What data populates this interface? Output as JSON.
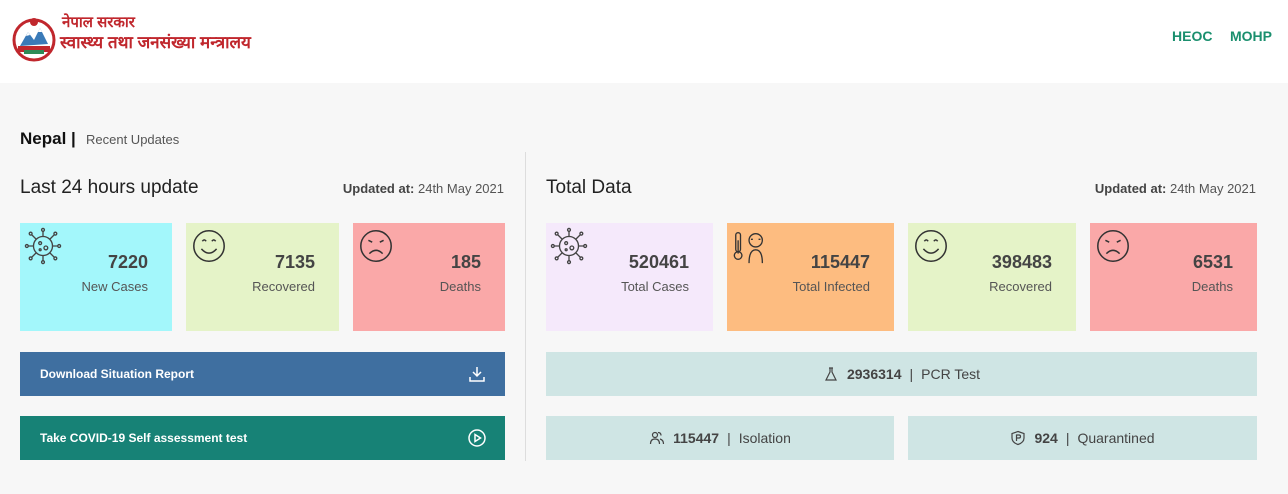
{
  "header": {
    "logo_line1": "नेपाल सरकार",
    "logo_line2": "स्वास्थ्य तथा जनसंख्या मन्त्रालय",
    "nav": [
      {
        "label": "HEOC"
      },
      {
        "label": "MOHP"
      }
    ]
  },
  "page": {
    "country": "Nepal |",
    "subtitle": "Recent Updates"
  },
  "last24": {
    "title": "Last 24 hours update",
    "updated_label": "Updated at:",
    "updated_value": "24th May 2021",
    "cards": [
      {
        "value": "7220",
        "label": "New Cases",
        "color": "#a3f7fb",
        "icon": "virus-icon"
      },
      {
        "value": "7135",
        "label": "Recovered",
        "color": "#e5f3c8",
        "icon": "smiley-icon"
      },
      {
        "value": "185",
        "label": "Deaths",
        "color": "#faa8a8",
        "icon": "sad-face-icon"
      }
    ],
    "download_label": "Download Situation Report",
    "assessment_label": "Take COVID-19 Self assessment test"
  },
  "total": {
    "title": "Total Data",
    "updated_label": "Updated at:",
    "updated_value": "24th May 2021",
    "cards": [
      {
        "value": "520461",
        "label": "Total Cases",
        "color": "#f5e9fb",
        "icon": "virus-icon"
      },
      {
        "value": "115447",
        "label": "Total Infected",
        "color": "#fdbc80",
        "icon": "fever-icon"
      },
      {
        "value": "398483",
        "label": "Recovered",
        "color": "#e5f3c8",
        "icon": "smiley-icon"
      },
      {
        "value": "6531",
        "label": "Deaths",
        "color": "#faa8a8",
        "icon": "sad-face-icon"
      }
    ],
    "pcr": {
      "value": "2936314",
      "sep": "|",
      "label": "PCR Test"
    },
    "isolation": {
      "value": "115447",
      "sep": "|",
      "label": "Isolation"
    },
    "quarantined": {
      "value": "924",
      "sep": "|",
      "label": "Quarantined"
    }
  },
  "colors": {
    "download_button": "#3f6fa0",
    "assessment_button": "#178276",
    "stat_bg": "#cfe5e4",
    "nav_link": "#1a8f6e"
  }
}
